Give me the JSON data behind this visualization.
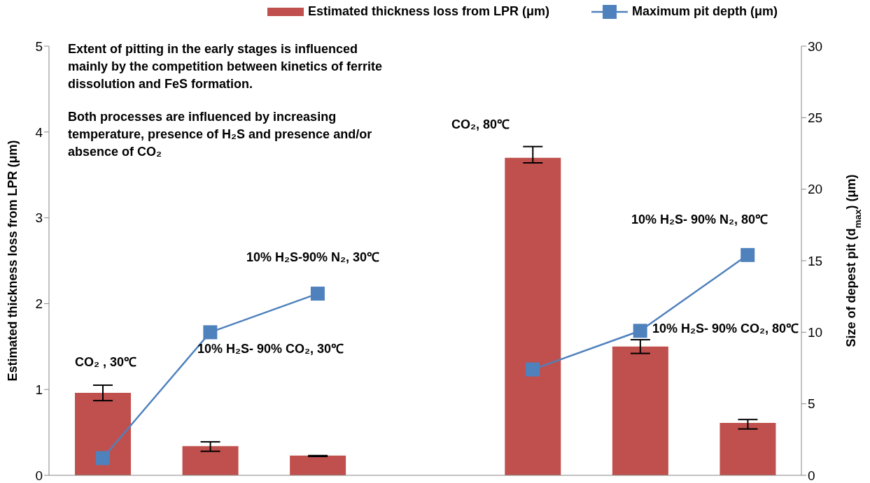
{
  "chart_data": {
    "type": "bar",
    "categories": [
      null,
      null,
      null,
      null,
      null,
      null,
      null
    ],
    "series": [
      {
        "name": "Estimated thickness loss from LPR (μm)",
        "color": "#c0504d",
        "values": [
          0.96,
          0.34,
          0.23,
          null,
          3.7,
          1.5,
          0.61
        ],
        "errors": [
          [
            0.87,
            1.05
          ],
          [
            0.28,
            0.39
          ],
          [
            0.22,
            0.23
          ],
          null,
          [
            3.64,
            3.83
          ],
          [
            1.42,
            1.58
          ],
          [
            0.54,
            0.65
          ]
        ]
      },
      {
        "type": "line",
        "name": "Maximum pit depth (μm)",
        "color": "#4f81bd",
        "axis": "y2",
        "marker": "square",
        "values": [
          1.2,
          10.0,
          12.7,
          null,
          7.4,
          10.1,
          15.4
        ]
      }
    ],
    "ylabel": "Estimated thickness loss from LPR (μm)",
    "y2label": "Size of depest pit (d$_{max}$) (μm)",
    "ylim": [
      0,
      5
    ],
    "yticks": [
      0,
      1,
      2,
      3,
      4,
      5
    ],
    "y2lim": [
      0,
      30
    ],
    "y2ticks": [
      0,
      5,
      10,
      15,
      20,
      25,
      30
    ],
    "legend": "top",
    "grid": false,
    "annotations": [
      "Extent of pitting in the early stages is influenced mainly by the competition between kinetics of ferrite dissolution and FeS formation.",
      "Both processes are influenced  by increasing temperature, presence of H₂S and presence and/or absence of CO₂",
      "CO₂ , 30℃",
      "10% H₂S- 90% CO₂, 30℃",
      "10% H₂S-90% N₂, 30℃",
      "CO₂, 80℃",
      "10% H₂S- 90% N₂, 80℃",
      "10% H₂S- 90% CO₂, 80℃"
    ]
  }
}
